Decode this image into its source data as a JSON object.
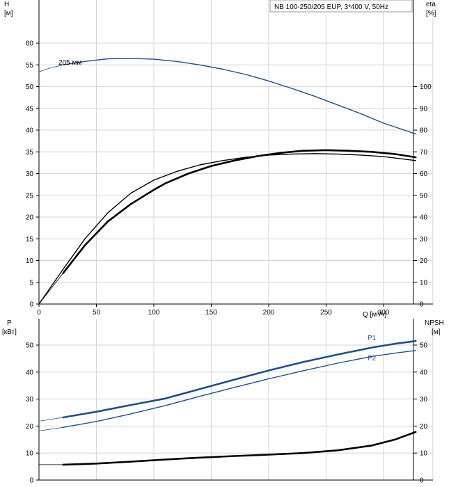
{
  "colors": {
    "grid": "#d6d6d6",
    "axis": "#000000",
    "blue": "#1f4e8c",
    "black": "#000000",
    "title_border": "#9a9a9a"
  },
  "title": "NB 100-250/205 EUP, 3*400 V, 50Hz",
  "chart_data": [
    {
      "type": "line",
      "left_axis": {
        "label": "H",
        "unit": "[м]",
        "range": [
          0,
          65
        ],
        "ticks": [
          0,
          5,
          10,
          15,
          20,
          25,
          30,
          35,
          40,
          45,
          50,
          55,
          60
        ]
      },
      "right_axis": {
        "label": "eta",
        "unit": "[%]",
        "range": [
          0,
          130
        ],
        "ticks": [
          0,
          10,
          20,
          30,
          40,
          50,
          60,
          70,
          80,
          90,
          100
        ]
      },
      "x_axis": {
        "label": "Q [м³/ч]",
        "range": [
          0,
          345
        ],
        "ticks": [
          0,
          50,
          100,
          150,
          200,
          250,
          300
        ]
      },
      "grid": true,
      "annotations": [
        {
          "text": "205 мм"
        }
      ],
      "series": [
        {
          "color": "#1f4e8c",
          "axis": "left",
          "extension": [
            [
              0,
              53.4
            ],
            [
              10,
              54.3
            ],
            [
              21,
              55.0
            ]
          ],
          "points": [
            [
              21,
              55.0
            ],
            [
              40,
              55.8
            ],
            [
              60,
              56.4
            ],
            [
              80,
              56.5
            ],
            [
              100,
              56.3
            ],
            [
              120,
              55.8
            ],
            [
              140,
              55.0
            ],
            [
              160,
              54.0
            ],
            [
              180,
              52.8
            ],
            [
              200,
              51.3
            ],
            [
              220,
              49.6
            ],
            [
              240,
              47.8
            ],
            [
              260,
              45.8
            ],
            [
              280,
              43.8
            ],
            [
              300,
              41.6
            ],
            [
              328,
              39.1
            ]
          ]
        },
        {
          "color": "#000000",
          "axis": "right",
          "points": [
            [
              0,
              0
            ],
            [
              21,
              16
            ],
            [
              40,
              30
            ],
            [
              60,
              42
            ],
            [
              80,
              51
            ],
            [
              100,
              57
            ],
            [
              120,
              61
            ],
            [
              140,
              64
            ],
            [
              160,
              66
            ],
            [
              180,
              67.5
            ],
            [
              200,
              68.5
            ],
            [
              220,
              69
            ],
            [
              240,
              69.2
            ],
            [
              260,
              69
            ],
            [
              280,
              68.5
            ],
            [
              300,
              67.8
            ],
            [
              328,
              66
            ]
          ]
        },
        {
          "color": "#000000",
          "axis": "right",
          "bold": true,
          "extension": [
            [
              0,
              0
            ],
            [
              21,
              14.2
            ]
          ],
          "points": [
            [
              21,
              14.2
            ],
            [
              40,
              27
            ],
            [
              60,
              38
            ],
            [
              80,
              46
            ],
            [
              100,
              52.5
            ],
            [
              110,
              55.5
            ],
            [
              130,
              60
            ],
            [
              150,
              63.5
            ],
            [
              170,
              66
            ],
            [
              190,
              68
            ],
            [
              210,
              69.5
            ],
            [
              230,
              70.5
            ],
            [
              250,
              70.8
            ],
            [
              270,
              70.5
            ],
            [
              290,
              70
            ],
            [
              310,
              69
            ],
            [
              328,
              67.5
            ]
          ]
        }
      ]
    },
    {
      "type": "line",
      "left_axis": {
        "label": "P",
        "unit": "[кВт]",
        "range": [
          0,
          56
        ],
        "ticks": [
          0,
          10,
          20,
          30,
          40,
          50
        ]
      },
      "right_axis": {
        "label": "NPSH",
        "unit": "[м]",
        "range": [
          0,
          56
        ],
        "ticks": [
          0,
          10,
          20,
          30,
          40,
          50
        ]
      },
      "x_axis": {
        "range": [
          0,
          345
        ]
      },
      "grid": true,
      "series": [
        {
          "name": "P1",
          "color": "#1f4e8c",
          "axis": "left",
          "bold": true,
          "extension": [
            [
              0,
              21.8
            ],
            [
              21,
              23.2
            ]
          ],
          "points": [
            [
              21,
              23.2
            ],
            [
              50,
              25.3
            ],
            [
              80,
              27.8
            ],
            [
              110,
              30.2
            ],
            [
              140,
              33.7
            ],
            [
              170,
              37.2
            ],
            [
              200,
              40.6
            ],
            [
              230,
              43.7
            ],
            [
              260,
              46.5
            ],
            [
              290,
              49.1
            ],
            [
              310,
              50.5
            ],
            [
              328,
              51.5
            ]
          ]
        },
        {
          "name": "P2",
          "color": "#1f4e8c",
          "axis": "left",
          "extension": [
            [
              0,
              18.2
            ],
            [
              21,
              19.5
            ]
          ],
          "points": [
            [
              21,
              19.5
            ],
            [
              50,
              21.7
            ],
            [
              80,
              24.5
            ],
            [
              110,
              27.6
            ],
            [
              140,
              31
            ],
            [
              170,
              34.3
            ],
            [
              200,
              37.5
            ],
            [
              230,
              40.5
            ],
            [
              260,
              43.3
            ],
            [
              290,
              45.8
            ],
            [
              310,
              47
            ],
            [
              328,
              48
            ]
          ]
        },
        {
          "color": "#000000",
          "axis": "right",
          "bold": true,
          "extension": [
            [
              0,
              5.7
            ],
            [
              21,
              5.7
            ]
          ],
          "points": [
            [
              21,
              5.7
            ],
            [
              50,
              6.1
            ],
            [
              80,
              6.8
            ],
            [
              110,
              7.6
            ],
            [
              140,
              8.3
            ],
            [
              170,
              8.9
            ],
            [
              200,
              9.4
            ],
            [
              230,
              10
            ],
            [
              260,
              11
            ],
            [
              290,
              12.8
            ],
            [
              310,
              15
            ],
            [
              328,
              17.8
            ]
          ]
        }
      ]
    }
  ]
}
